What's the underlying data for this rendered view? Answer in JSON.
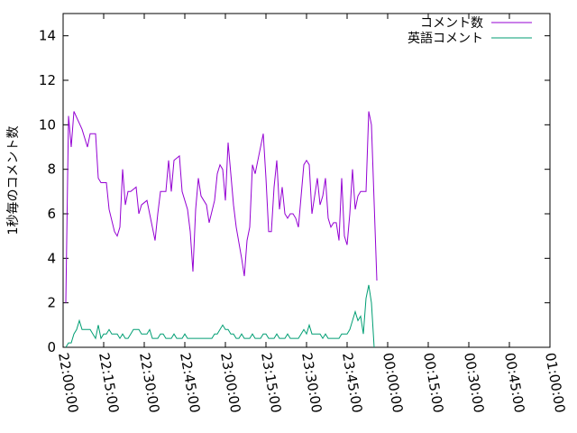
{
  "chart_data": {
    "type": "line",
    "title": "",
    "xlabel": "",
    "ylabel": "1秒毎のコメント数",
    "xlim": [
      "22:00:00",
      "25:00:00"
    ],
    "ylim": [
      0,
      15
    ],
    "yticks": [
      0,
      2,
      4,
      6,
      8,
      10,
      12,
      14
    ],
    "xticks": [
      "22:00:00",
      "22:15:00",
      "22:30:00",
      "22:45:00",
      "23:00:00",
      "23:15:00",
      "23:30:00",
      "23:45:00",
      "00:00:00",
      "00:15:00",
      "00:30:00",
      "00:45:00",
      "01:00:00"
    ],
    "grid": false,
    "legend_position": "top-right",
    "series": [
      {
        "name": "コメント数",
        "color": "#9400d3",
        "points": [
          [
            "22:01:00",
            2.0
          ],
          [
            "22:02:00",
            10.4
          ],
          [
            "22:03:00",
            9.0
          ],
          [
            "22:04:00",
            10.6
          ],
          [
            "22:07:00",
            9.8
          ],
          [
            "22:09:00",
            9.0
          ],
          [
            "22:10:00",
            9.6
          ],
          [
            "22:12:00",
            9.6
          ],
          [
            "22:13:00",
            7.6
          ],
          [
            "22:14:00",
            7.4
          ],
          [
            "22:16:00",
            7.4
          ],
          [
            "22:17:00",
            6.2
          ],
          [
            "22:19:00",
            5.2
          ],
          [
            "22:20:00",
            5.0
          ],
          [
            "22:21:00",
            5.4
          ],
          [
            "22:22:00",
            8.0
          ],
          [
            "22:23:00",
            6.4
          ],
          [
            "22:24:00",
            7.0
          ],
          [
            "22:25:00",
            7.0
          ],
          [
            "22:27:00",
            7.2
          ],
          [
            "22:28:00",
            6.0
          ],
          [
            "22:29:00",
            6.4
          ],
          [
            "22:31:00",
            6.6
          ],
          [
            "22:32:00",
            6.0
          ],
          [
            "22:34:00",
            4.8
          ],
          [
            "22:35:00",
            6.0
          ],
          [
            "22:36:00",
            7.0
          ],
          [
            "22:38:00",
            7.0
          ],
          [
            "22:39:00",
            8.4
          ],
          [
            "22:40:00",
            7.0
          ],
          [
            "22:41:00",
            8.4
          ],
          [
            "22:43:00",
            8.6
          ],
          [
            "22:44:00",
            7.0
          ],
          [
            "22:46:00",
            6.2
          ],
          [
            "22:47:00",
            5.2
          ],
          [
            "22:48:00",
            3.4
          ],
          [
            "22:49:00",
            6.2
          ],
          [
            "22:50:00",
            7.6
          ],
          [
            "22:51:00",
            6.8
          ],
          [
            "22:53:00",
            6.4
          ],
          [
            "22:54:00",
            5.6
          ],
          [
            "22:56:00",
            6.6
          ],
          [
            "22:57:00",
            7.8
          ],
          [
            "22:58:00",
            8.2
          ],
          [
            "22:59:00",
            8.0
          ],
          [
            "23:00:00",
            6.6
          ],
          [
            "23:01:00",
            9.2
          ],
          [
            "23:02:00",
            7.8
          ],
          [
            "23:03:00",
            6.4
          ],
          [
            "23:04:00",
            5.4
          ],
          [
            "23:06:00",
            4.0
          ],
          [
            "23:07:00",
            3.2
          ],
          [
            "23:08:00",
            4.8
          ],
          [
            "23:09:00",
            5.4
          ],
          [
            "23:10:00",
            8.2
          ],
          [
            "23:11:00",
            7.8
          ],
          [
            "23:12:00",
            8.4
          ],
          [
            "23:14:00",
            9.6
          ],
          [
            "23:15:00",
            7.6
          ],
          [
            "23:16:00",
            5.2
          ],
          [
            "23:17:00",
            5.2
          ],
          [
            "23:18:00",
            7.2
          ],
          [
            "23:19:00",
            8.4
          ],
          [
            "23:20:00",
            6.2
          ],
          [
            "23:21:00",
            7.2
          ],
          [
            "23:22:00",
            6.0
          ],
          [
            "23:23:00",
            5.8
          ],
          [
            "23:24:00",
            6.0
          ],
          [
            "23:25:00",
            6.0
          ],
          [
            "23:26:00",
            5.8
          ],
          [
            "23:27:00",
            5.4
          ],
          [
            "23:29:00",
            8.2
          ],
          [
            "23:30:00",
            8.4
          ],
          [
            "23:31:00",
            8.2
          ],
          [
            "23:32:00",
            6.0
          ],
          [
            "23:33:00",
            6.8
          ],
          [
            "23:34:00",
            7.6
          ],
          [
            "23:35:00",
            6.4
          ],
          [
            "23:36:00",
            6.8
          ],
          [
            "23:37:00",
            7.6
          ],
          [
            "23:38:00",
            5.8
          ],
          [
            "23:39:00",
            5.4
          ],
          [
            "23:40:00",
            5.6
          ],
          [
            "23:41:00",
            5.6
          ],
          [
            "23:42:00",
            4.8
          ],
          [
            "23:43:00",
            7.6
          ],
          [
            "23:44:00",
            5.0
          ],
          [
            "23:45:00",
            4.6
          ],
          [
            "23:46:00",
            6.0
          ],
          [
            "23:47:00",
            8.0
          ],
          [
            "23:48:00",
            6.2
          ],
          [
            "23:49:00",
            6.8
          ],
          [
            "23:50:00",
            7.0
          ],
          [
            "23:51:00",
            7.0
          ],
          [
            "23:52:00",
            7.0
          ],
          [
            "23:53:00",
            10.6
          ],
          [
            "23:54:00",
            10.0
          ],
          [
            "23:56:00",
            3.0
          ]
        ]
      },
      {
        "name": "英語コメント",
        "color": "#009e73",
        "points": [
          [
            "22:01:00",
            0.0
          ],
          [
            "22:02:00",
            0.2
          ],
          [
            "22:03:00",
            0.2
          ],
          [
            "22:04:00",
            0.6
          ],
          [
            "22:05:00",
            0.8
          ],
          [
            "22:06:00",
            1.2
          ],
          [
            "22:07:00",
            0.8
          ],
          [
            "22:08:00",
            0.8
          ],
          [
            "22:10:00",
            0.8
          ],
          [
            "22:11:00",
            0.6
          ],
          [
            "22:12:00",
            0.4
          ],
          [
            "22:13:00",
            1.0
          ],
          [
            "22:14:00",
            0.4
          ],
          [
            "22:15:00",
            0.6
          ],
          [
            "22:16:00",
            0.6
          ],
          [
            "22:17:00",
            0.8
          ],
          [
            "22:18:00",
            0.6
          ],
          [
            "22:19:00",
            0.6
          ],
          [
            "22:20:00",
            0.6
          ],
          [
            "22:21:00",
            0.4
          ],
          [
            "22:22:00",
            0.6
          ],
          [
            "22:23:00",
            0.4
          ],
          [
            "22:24:00",
            0.4
          ],
          [
            "22:25:00",
            0.6
          ],
          [
            "22:26:00",
            0.8
          ],
          [
            "22:27:00",
            0.8
          ],
          [
            "22:28:00",
            0.8
          ],
          [
            "22:29:00",
            0.6
          ],
          [
            "22:30:00",
            0.6
          ],
          [
            "22:31:00",
            0.6
          ],
          [
            "22:32:00",
            0.8
          ],
          [
            "22:33:00",
            0.4
          ],
          [
            "22:34:00",
            0.4
          ],
          [
            "22:35:00",
            0.4
          ],
          [
            "22:36:00",
            0.6
          ],
          [
            "22:37:00",
            0.6
          ],
          [
            "22:38:00",
            0.4
          ],
          [
            "22:39:00",
            0.4
          ],
          [
            "22:40:00",
            0.4
          ],
          [
            "22:41:00",
            0.6
          ],
          [
            "22:42:00",
            0.4
          ],
          [
            "22:43:00",
            0.4
          ],
          [
            "22:44:00",
            0.4
          ],
          [
            "22:45:00",
            0.6
          ],
          [
            "22:46:00",
            0.4
          ],
          [
            "22:47:00",
            0.4
          ],
          [
            "22:48:00",
            0.4
          ],
          [
            "22:49:00",
            0.4
          ],
          [
            "22:50:00",
            0.4
          ],
          [
            "22:51:00",
            0.4
          ],
          [
            "22:52:00",
            0.4
          ],
          [
            "22:53:00",
            0.4
          ],
          [
            "22:54:00",
            0.4
          ],
          [
            "22:55:00",
            0.4
          ],
          [
            "22:56:00",
            0.6
          ],
          [
            "22:57:00",
            0.6
          ],
          [
            "22:58:00",
            0.8
          ],
          [
            "22:59:00",
            1.0
          ],
          [
            "23:00:00",
            0.8
          ],
          [
            "23:01:00",
            0.8
          ],
          [
            "23:02:00",
            0.6
          ],
          [
            "23:03:00",
            0.6
          ],
          [
            "23:04:00",
            0.4
          ],
          [
            "23:05:00",
            0.4
          ],
          [
            "23:06:00",
            0.6
          ],
          [
            "23:07:00",
            0.4
          ],
          [
            "23:08:00",
            0.4
          ],
          [
            "23:09:00",
            0.4
          ],
          [
            "23:10:00",
            0.6
          ],
          [
            "23:11:00",
            0.4
          ],
          [
            "23:12:00",
            0.4
          ],
          [
            "23:13:00",
            0.4
          ],
          [
            "23:14:00",
            0.6
          ],
          [
            "23:15:00",
            0.6
          ],
          [
            "23:16:00",
            0.4
          ],
          [
            "23:17:00",
            0.4
          ],
          [
            "23:18:00",
            0.4
          ],
          [
            "23:19:00",
            0.6
          ],
          [
            "23:20:00",
            0.4
          ],
          [
            "23:21:00",
            0.4
          ],
          [
            "23:22:00",
            0.4
          ],
          [
            "23:23:00",
            0.6
          ],
          [
            "23:24:00",
            0.4
          ],
          [
            "23:25:00",
            0.4
          ],
          [
            "23:26:00",
            0.4
          ],
          [
            "23:27:00",
            0.4
          ],
          [
            "23:28:00",
            0.6
          ],
          [
            "23:29:00",
            0.8
          ],
          [
            "23:30:00",
            0.6
          ],
          [
            "23:31:00",
            1.0
          ],
          [
            "23:32:00",
            0.6
          ],
          [
            "23:33:00",
            0.6
          ],
          [
            "23:34:00",
            0.6
          ],
          [
            "23:35:00",
            0.6
          ],
          [
            "23:36:00",
            0.4
          ],
          [
            "23:37:00",
            0.6
          ],
          [
            "23:38:00",
            0.4
          ],
          [
            "23:39:00",
            0.4
          ],
          [
            "23:40:00",
            0.4
          ],
          [
            "23:41:00",
            0.4
          ],
          [
            "23:42:00",
            0.4
          ],
          [
            "23:43:00",
            0.6
          ],
          [
            "23:44:00",
            0.6
          ],
          [
            "23:45:00",
            0.6
          ],
          [
            "23:46:00",
            0.8
          ],
          [
            "23:47:00",
            1.2
          ],
          [
            "23:48:00",
            1.6
          ],
          [
            "23:49:00",
            1.2
          ],
          [
            "23:50:00",
            1.4
          ],
          [
            "23:51:00",
            0.6
          ],
          [
            "23:52:00",
            2.2
          ],
          [
            "23:53:00",
            2.8
          ],
          [
            "23:54:00",
            2.0
          ],
          [
            "23:55:00",
            0.0
          ]
        ]
      }
    ]
  }
}
